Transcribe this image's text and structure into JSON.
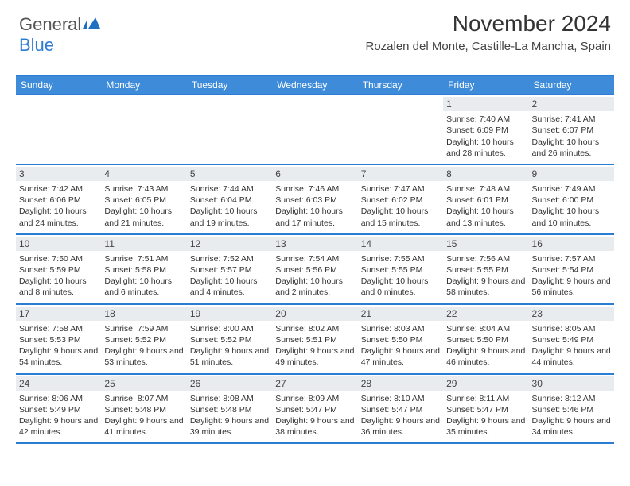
{
  "logo": {
    "part1": "General",
    "part2": "Blue"
  },
  "title": "November 2024",
  "location": "Rozalen del Monte, Castille-La Mancha, Spain",
  "weekdays": [
    "Sunday",
    "Monday",
    "Tuesday",
    "Wednesday",
    "Thursday",
    "Friday",
    "Saturday"
  ],
  "colors": {
    "brand_blue": "#2b7cd3",
    "header_blue": "#3d8bd9",
    "daynum_bg": "#e8ecef",
    "text": "#333333"
  },
  "weeks": [
    [
      {
        "empty": true
      },
      {
        "empty": true
      },
      {
        "empty": true
      },
      {
        "empty": true
      },
      {
        "empty": true
      },
      {
        "num": "1",
        "sunrise": "Sunrise: 7:40 AM",
        "sunset": "Sunset: 6:09 PM",
        "daylight": "Daylight: 10 hours and 28 minutes."
      },
      {
        "num": "2",
        "sunrise": "Sunrise: 7:41 AM",
        "sunset": "Sunset: 6:07 PM",
        "daylight": "Daylight: 10 hours and 26 minutes."
      }
    ],
    [
      {
        "num": "3",
        "sunrise": "Sunrise: 7:42 AM",
        "sunset": "Sunset: 6:06 PM",
        "daylight": "Daylight: 10 hours and 24 minutes."
      },
      {
        "num": "4",
        "sunrise": "Sunrise: 7:43 AM",
        "sunset": "Sunset: 6:05 PM",
        "daylight": "Daylight: 10 hours and 21 minutes."
      },
      {
        "num": "5",
        "sunrise": "Sunrise: 7:44 AM",
        "sunset": "Sunset: 6:04 PM",
        "daylight": "Daylight: 10 hours and 19 minutes."
      },
      {
        "num": "6",
        "sunrise": "Sunrise: 7:46 AM",
        "sunset": "Sunset: 6:03 PM",
        "daylight": "Daylight: 10 hours and 17 minutes."
      },
      {
        "num": "7",
        "sunrise": "Sunrise: 7:47 AM",
        "sunset": "Sunset: 6:02 PM",
        "daylight": "Daylight: 10 hours and 15 minutes."
      },
      {
        "num": "8",
        "sunrise": "Sunrise: 7:48 AM",
        "sunset": "Sunset: 6:01 PM",
        "daylight": "Daylight: 10 hours and 13 minutes."
      },
      {
        "num": "9",
        "sunrise": "Sunrise: 7:49 AM",
        "sunset": "Sunset: 6:00 PM",
        "daylight": "Daylight: 10 hours and 10 minutes."
      }
    ],
    [
      {
        "num": "10",
        "sunrise": "Sunrise: 7:50 AM",
        "sunset": "Sunset: 5:59 PM",
        "daylight": "Daylight: 10 hours and 8 minutes."
      },
      {
        "num": "11",
        "sunrise": "Sunrise: 7:51 AM",
        "sunset": "Sunset: 5:58 PM",
        "daylight": "Daylight: 10 hours and 6 minutes."
      },
      {
        "num": "12",
        "sunrise": "Sunrise: 7:52 AM",
        "sunset": "Sunset: 5:57 PM",
        "daylight": "Daylight: 10 hours and 4 minutes."
      },
      {
        "num": "13",
        "sunrise": "Sunrise: 7:54 AM",
        "sunset": "Sunset: 5:56 PM",
        "daylight": "Daylight: 10 hours and 2 minutes."
      },
      {
        "num": "14",
        "sunrise": "Sunrise: 7:55 AM",
        "sunset": "Sunset: 5:55 PM",
        "daylight": "Daylight: 10 hours and 0 minutes."
      },
      {
        "num": "15",
        "sunrise": "Sunrise: 7:56 AM",
        "sunset": "Sunset: 5:55 PM",
        "daylight": "Daylight: 9 hours and 58 minutes."
      },
      {
        "num": "16",
        "sunrise": "Sunrise: 7:57 AM",
        "sunset": "Sunset: 5:54 PM",
        "daylight": "Daylight: 9 hours and 56 minutes."
      }
    ],
    [
      {
        "num": "17",
        "sunrise": "Sunrise: 7:58 AM",
        "sunset": "Sunset: 5:53 PM",
        "daylight": "Daylight: 9 hours and 54 minutes."
      },
      {
        "num": "18",
        "sunrise": "Sunrise: 7:59 AM",
        "sunset": "Sunset: 5:52 PM",
        "daylight": "Daylight: 9 hours and 53 minutes."
      },
      {
        "num": "19",
        "sunrise": "Sunrise: 8:00 AM",
        "sunset": "Sunset: 5:52 PM",
        "daylight": "Daylight: 9 hours and 51 minutes."
      },
      {
        "num": "20",
        "sunrise": "Sunrise: 8:02 AM",
        "sunset": "Sunset: 5:51 PM",
        "daylight": "Daylight: 9 hours and 49 minutes."
      },
      {
        "num": "21",
        "sunrise": "Sunrise: 8:03 AM",
        "sunset": "Sunset: 5:50 PM",
        "daylight": "Daylight: 9 hours and 47 minutes."
      },
      {
        "num": "22",
        "sunrise": "Sunrise: 8:04 AM",
        "sunset": "Sunset: 5:50 PM",
        "daylight": "Daylight: 9 hours and 46 minutes."
      },
      {
        "num": "23",
        "sunrise": "Sunrise: 8:05 AM",
        "sunset": "Sunset: 5:49 PM",
        "daylight": "Daylight: 9 hours and 44 minutes."
      }
    ],
    [
      {
        "num": "24",
        "sunrise": "Sunrise: 8:06 AM",
        "sunset": "Sunset: 5:49 PM",
        "daylight": "Daylight: 9 hours and 42 minutes."
      },
      {
        "num": "25",
        "sunrise": "Sunrise: 8:07 AM",
        "sunset": "Sunset: 5:48 PM",
        "daylight": "Daylight: 9 hours and 41 minutes."
      },
      {
        "num": "26",
        "sunrise": "Sunrise: 8:08 AM",
        "sunset": "Sunset: 5:48 PM",
        "daylight": "Daylight: 9 hours and 39 minutes."
      },
      {
        "num": "27",
        "sunrise": "Sunrise: 8:09 AM",
        "sunset": "Sunset: 5:47 PM",
        "daylight": "Daylight: 9 hours and 38 minutes."
      },
      {
        "num": "28",
        "sunrise": "Sunrise: 8:10 AM",
        "sunset": "Sunset: 5:47 PM",
        "daylight": "Daylight: 9 hours and 36 minutes."
      },
      {
        "num": "29",
        "sunrise": "Sunrise: 8:11 AM",
        "sunset": "Sunset: 5:47 PM",
        "daylight": "Daylight: 9 hours and 35 minutes."
      },
      {
        "num": "30",
        "sunrise": "Sunrise: 8:12 AM",
        "sunset": "Sunset: 5:46 PM",
        "daylight": "Daylight: 9 hours and 34 minutes."
      }
    ]
  ]
}
